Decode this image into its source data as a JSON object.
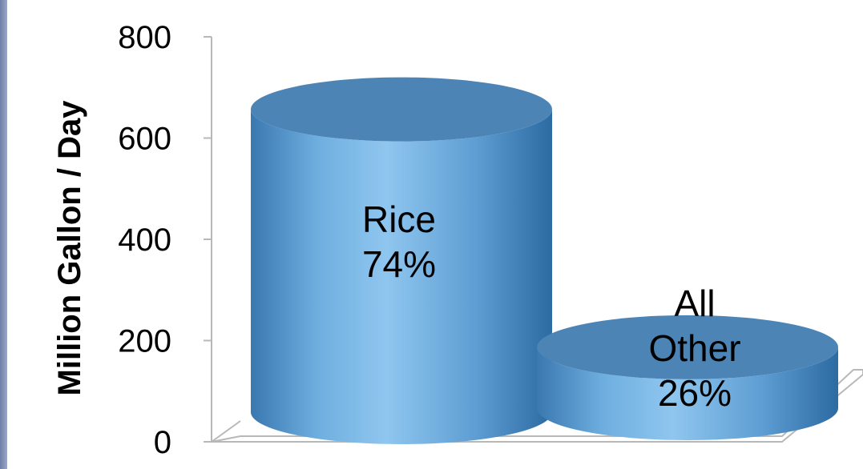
{
  "chart_data": {
    "type": "bar",
    "style": "3d-cylinder",
    "title": "",
    "xlabel": "",
    "ylabel": "Million Gallon / Day",
    "ylim": [
      0,
      800
    ],
    "yticks": [
      0,
      200,
      400,
      600,
      800
    ],
    "categories": [
      "Rice",
      "All Other"
    ],
    "values": [
      720,
      250
    ],
    "data_labels": [
      [
        "Rice",
        "74%"
      ],
      [
        "All",
        "Other",
        "26%"
      ]
    ],
    "grid": false,
    "legend": "none",
    "colors": {
      "bar_light": "#8cc4ee",
      "bar_mid": "#5b9bd0",
      "bar_dark": "#2f6ea6",
      "top": "#4d84b6",
      "axis": "#b8b8b8"
    }
  }
}
